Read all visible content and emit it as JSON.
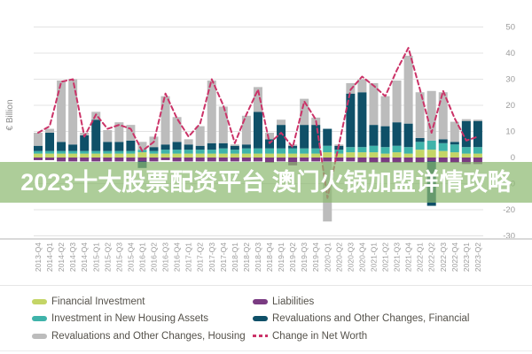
{
  "banner": {
    "text": "2023十大股票配资平台 澳门火锅加盟详情攻略",
    "bg_color": "#8cb970",
    "text_color": "#ffffff"
  },
  "axis": {
    "y_label": "€ Billion",
    "y_ticks_right": [
      50,
      40,
      30,
      20,
      10,
      0,
      -10,
      -20,
      -30
    ]
  },
  "legend": {
    "items": [
      {
        "label": "Financial Investment",
        "color": "#c4d566",
        "type": "bar"
      },
      {
        "label": "Investment in New Housing Assets",
        "color": "#3fb3aa",
        "type": "bar"
      },
      {
        "label": "Revaluations and Other Changes, Housing",
        "color": "#bcbcbc",
        "type": "bar"
      },
      {
        "label": "Liabilities",
        "color": "#7a3b82",
        "type": "bar"
      },
      {
        "label": "Revaluations and Other Changes, Financial",
        "color": "#0f5068",
        "type": "bar"
      },
      {
        "label": "Change in Net Worth",
        "color": "#cb3368",
        "type": "line"
      }
    ]
  },
  "chart_data": {
    "type": "bar",
    "subtype": "stacked-bar-with-line",
    "title": "",
    "xlabel": "",
    "ylabel": "€ Billion",
    "ylim": [
      -30,
      50
    ],
    "grid": true,
    "legend_position": "bottom",
    "categories": [
      "2013-Q4",
      "2014-Q1",
      "2014-Q2",
      "2014-Q3",
      "2014-Q4",
      "2015-Q1",
      "2015-Q2",
      "2015-Q3",
      "2015-Q4",
      "2016-Q1",
      "2016-Q2",
      "2016-Q3",
      "2016-Q4",
      "2017-Q1",
      "2017-Q2",
      "2017-Q3",
      "2017-Q4",
      "2018-Q1",
      "2018-Q2",
      "2018-Q3",
      "2018-Q4",
      "2019-Q1",
      "2019-Q2",
      "2019-Q3",
      "2019-Q4",
      "2020-Q1",
      "2020-Q2",
      "2020-Q3",
      "2020-Q4",
      "2021-Q1",
      "2021-Q2",
      "2021-Q3",
      "2021-Q4",
      "2022-Q1",
      "2022-Q2",
      "2022-Q3",
      "2022-Q4",
      "2023-Q1",
      "2023-Q2"
    ],
    "series": [
      {
        "name": "Financial Investment",
        "color": "#c4d566",
        "values": [
          1.5,
          1.5,
          1.5,
          1.5,
          1.5,
          1.5,
          1.5,
          1.5,
          1.5,
          2,
          1.5,
          1.5,
          1.5,
          1.5,
          1.5,
          1.5,
          1.5,
          1.5,
          1.5,
          1.5,
          1.5,
          1.5,
          1.5,
          1.5,
          1.5,
          2,
          1.5,
          2,
          2,
          2,
          1.5,
          2,
          1.5,
          3,
          3,
          2.5,
          2,
          1.5,
          1.5
        ]
      },
      {
        "name": "Investment in New Housing Assets",
        "color": "#3fb3aa",
        "values": [
          1,
          1,
          1,
          1,
          1,
          1,
          1,
          1,
          1,
          1,
          1,
          1.5,
          1.5,
          1.5,
          1.5,
          1.5,
          2,
          1.5,
          2,
          2,
          2,
          2,
          2,
          2,
          2,
          2.5,
          1.5,
          2,
          2,
          2.5,
          2.5,
          2.5,
          2.5,
          3,
          3.5,
          3,
          3,
          2.5,
          2.5
        ]
      },
      {
        "name": "Liabilities",
        "color": "#7a3b82",
        "values": [
          -1,
          -1,
          -1.5,
          -1.5,
          -1.5,
          -1.5,
          -1.5,
          -1.5,
          -1.5,
          -1.5,
          -1.5,
          -1,
          -1.5,
          -1.5,
          -1.5,
          -1.5,
          -1.5,
          -1.5,
          -1.5,
          -1.5,
          -2,
          -1.5,
          -3,
          -1.5,
          -1.5,
          -1.5,
          -1.5,
          -1.5,
          -2,
          -2,
          -2,
          -2,
          -2,
          -2,
          -1.5,
          -2,
          -2,
          -2.5,
          -2.5
        ]
      },
      {
        "name": "Revaluations and Other Changes, Financial",
        "color": "#0f5068",
        "values": [
          2,
          7,
          3.5,
          2.5,
          6,
          12,
          3.5,
          3.5,
          4,
          -2.5,
          1.5,
          2,
          3,
          2,
          1.5,
          2.5,
          2,
          1.5,
          1.5,
          14,
          3.5,
          9,
          1,
          9,
          9,
          6.5,
          1.5,
          20.5,
          21,
          8,
          8,
          9,
          9,
          1.5,
          -17,
          1.5,
          1,
          10,
          10
        ]
      },
      {
        "name": "Revaluations and Other Changes, Housing",
        "color": "#bcbcbc",
        "values": [
          5,
          1.5,
          23.5,
          25,
          1,
          3,
          4.5,
          7.5,
          6,
          3,
          4,
          18.5,
          9.5,
          2,
          7.5,
          24,
          14,
          0.5,
          11,
          9.5,
          2.5,
          2,
          0.5,
          10,
          2.8,
          -23,
          0.5,
          4,
          5,
          16,
          11.5,
          16,
          26,
          17.5,
          19,
          18,
          7.7,
          0.7,
          0.5
        ]
      }
    ],
    "line_series": {
      "name": "Change in Net Worth",
      "color": "#cb3368",
      "dashed": true,
      "values": [
        9.5,
        12,
        29,
        30,
        8,
        16.5,
        11,
        12.5,
        11,
        2.5,
        6,
        24.5,
        15,
        8,
        13,
        30,
        20,
        5.5,
        16.5,
        26,
        5.5,
        9.5,
        4,
        21.5,
        14.5,
        -15.5,
        5,
        26,
        31,
        27.5,
        23.5,
        33.5,
        42,
        26,
        9.5,
        25.5,
        15,
        6.5,
        8
      ]
    }
  }
}
